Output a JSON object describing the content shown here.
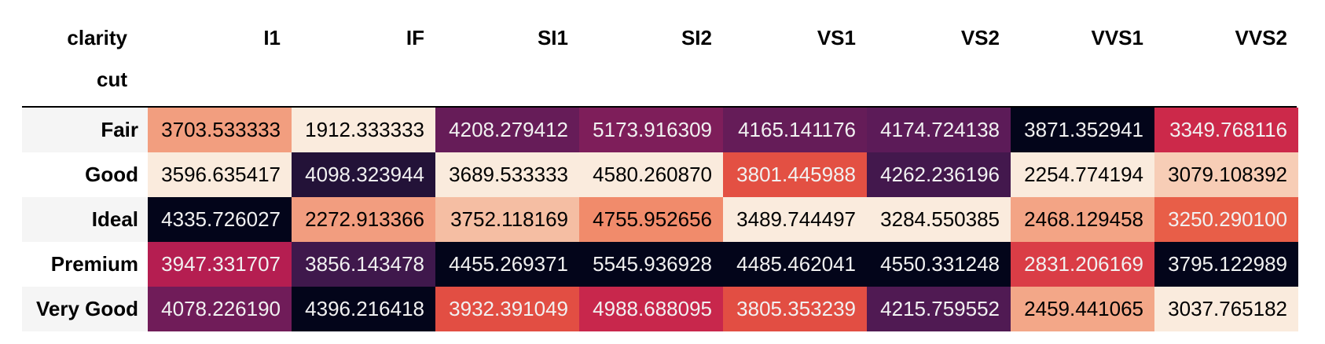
{
  "chart_data": {
    "type": "heatmap",
    "columns_name": "clarity",
    "index_name": "cut",
    "columns": [
      "I1",
      "IF",
      "SI1",
      "SI2",
      "VS1",
      "VS2",
      "VVS1",
      "VVS2"
    ],
    "rows": [
      {
        "label": "Fair",
        "values": [
          "3703.533333",
          "1912.333333",
          "4208.279412",
          "5173.916309",
          "4165.141176",
          "4174.724138",
          "3871.352941",
          "3349.768116"
        ]
      },
      {
        "label": "Good",
        "values": [
          "3596.635417",
          "4098.323944",
          "3689.533333",
          "4580.260870",
          "3801.445988",
          "4262.236196",
          "2254.774194",
          "3079.108392"
        ]
      },
      {
        "label": "Ideal",
        "values": [
          "4335.726027",
          "2272.913366",
          "3752.118169",
          "4755.952656",
          "3489.744497",
          "3284.550385",
          "2468.129458",
          "3250.290100"
        ]
      },
      {
        "label": "Premium",
        "values": [
          "3947.331707",
          "3856.143478",
          "4455.269371",
          "5545.936928",
          "4485.462041",
          "4550.331248",
          "2831.206169",
          "3795.122989"
        ]
      },
      {
        "label": "Very Good",
        "values": [
          "4078.226190",
          "4396.216418",
          "3932.391049",
          "4988.688095",
          "3805.353239",
          "4215.759552",
          "2459.441065",
          "3037.765182"
        ]
      }
    ],
    "color_scale": "rocket, per column",
    "grid": false
  },
  "colors": {
    "stripe": "#f5f5f5",
    "rule": "#000000"
  }
}
